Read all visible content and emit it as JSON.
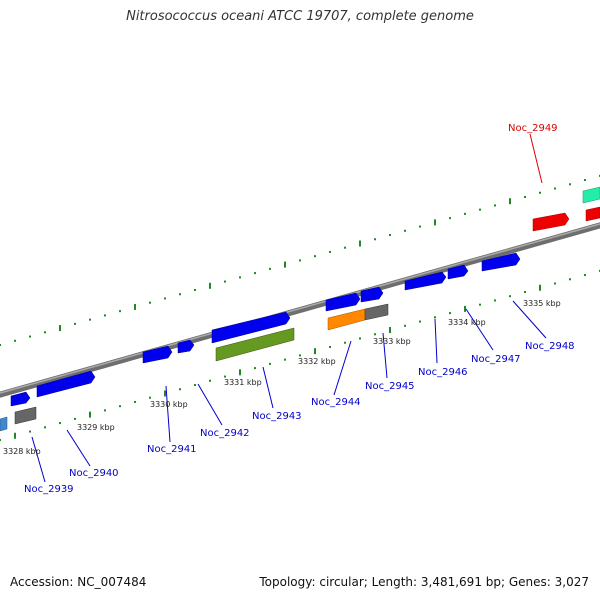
{
  "title": "Nitrosococcus oceani ATCC 19707, complete genome",
  "footer": {
    "accession": "Accession: NC_007484",
    "topology": "Topology: circular; Length: 3,481,691 bp; Genes: 3,027"
  },
  "colors": {
    "backbone": "#888888",
    "tick": "#228822",
    "forward_gene": "#0000ee",
    "reverse_gene": "#0000ee",
    "label": "#0000cc",
    "highlight_label": "#dd0000"
  },
  "scale_labels": [
    "3328 kbp",
    "3329 kbp",
    "3330 kbp",
    "3331 kbp",
    "3332 kbp",
    "3333 kbp",
    "3334 kbp",
    "3335 kbp"
  ],
  "gene_labels": [
    {
      "text": "Noc_2939",
      "highlight": false
    },
    {
      "text": "Noc_2940",
      "highlight": false
    },
    {
      "text": "Noc_2941",
      "highlight": false
    },
    {
      "text": "Noc_2942",
      "highlight": false
    },
    {
      "text": "Noc_2943",
      "highlight": false
    },
    {
      "text": "Noc_2944",
      "highlight": false
    },
    {
      "text": "Noc_2945",
      "highlight": false
    },
    {
      "text": "Noc_2946",
      "highlight": false
    },
    {
      "text": "Noc_2947",
      "highlight": false
    },
    {
      "text": "Noc_2948",
      "highlight": false
    },
    {
      "text": "Noc_2949",
      "highlight": true
    }
  ]
}
